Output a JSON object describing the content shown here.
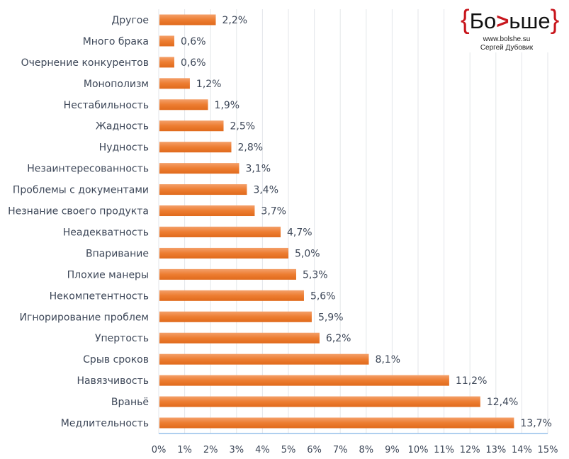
{
  "chart_data": {
    "type": "bar",
    "orientation": "horizontal",
    "categories": [
      "Другое",
      "Много брака",
      "Очернение конкурентов",
      "Монополизм",
      "Нестабильность",
      "Жадность",
      "Нудность",
      "Незаинтересованность",
      "Проблемы с документами",
      "Незнание своего продукта",
      "Неадекватность",
      "Впаривание",
      "Плохие манеры",
      "Некомпетентность",
      "Игнорирование проблем",
      "Упертость",
      "Срыв сроков",
      "Навязчивость",
      "Враньё",
      "Медлительность"
    ],
    "values": [
      2.2,
      0.6,
      0.6,
      1.2,
      1.9,
      2.5,
      2.8,
      3.1,
      3.4,
      3.7,
      4.7,
      5.0,
      5.3,
      5.6,
      5.9,
      6.2,
      8.1,
      11.2,
      12.4,
      13.7
    ],
    "data_labels": [
      "2,2%",
      "0,6%",
      "0,6%",
      "1,2%",
      "1,9%",
      "2,5%",
      "2,8%",
      "3,1%",
      "3,4%",
      "3,7%",
      "4,7%",
      "5,0%",
      "5,3%",
      "5,6%",
      "5,9%",
      "6,2%",
      "8,1%",
      "11,2%",
      "12,4%",
      "13,7%"
    ],
    "xticks": [
      "0%",
      "1%",
      "2%",
      "3%",
      "4%",
      "5%",
      "6%",
      "7%",
      "8%",
      "9%",
      "10%",
      "11%",
      "12%",
      "13%",
      "14%",
      "15%"
    ],
    "xlim": [
      0,
      15
    ],
    "grid": true,
    "bar_color": "#ed7d31",
    "title": "",
    "xlabel": "",
    "ylabel": ""
  },
  "logo": {
    "open": "{",
    "text1": "Бо",
    "gt": ">",
    "text2": "ьше",
    "close": "}",
    "url": "www.bolshe.su",
    "author": "Сергей Дубовик"
  }
}
